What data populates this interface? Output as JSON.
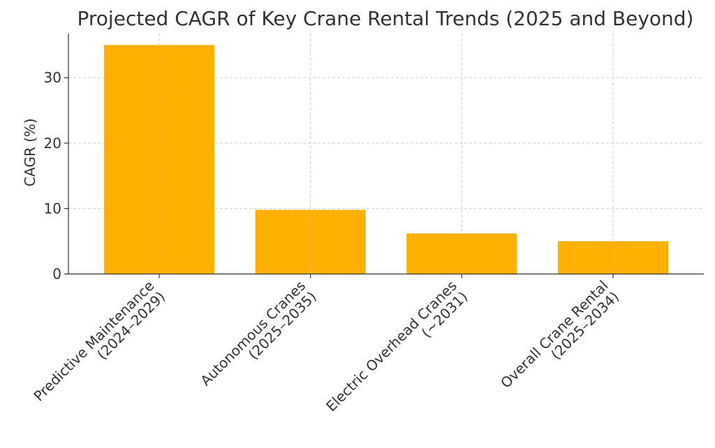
{
  "chart_data": {
    "type": "bar",
    "title": "Projected CAGR of Key Crane Rental Trends (2025 and Beyond)",
    "xlabel": "",
    "ylabel": "CAGR (%)",
    "categories": [
      [
        "Predictive Maintenance",
        "(2024–2029)"
      ],
      [
        "Autonomous Cranes",
        "(2025–2035)"
      ],
      [
        "Electric Overhead Cranes",
        "(~2031)"
      ],
      [
        "Overall Crane Rental",
        "(2025–2034)"
      ]
    ],
    "values": [
      35,
      9.8,
      6.2,
      5.0
    ],
    "ylim": [
      0,
      36.75
    ],
    "yticks": [
      0,
      10,
      20,
      30
    ],
    "grid": true,
    "bar_color": "#FFB000",
    "grid_color": "#CCCCCC",
    "axis_color": "#333333"
  }
}
